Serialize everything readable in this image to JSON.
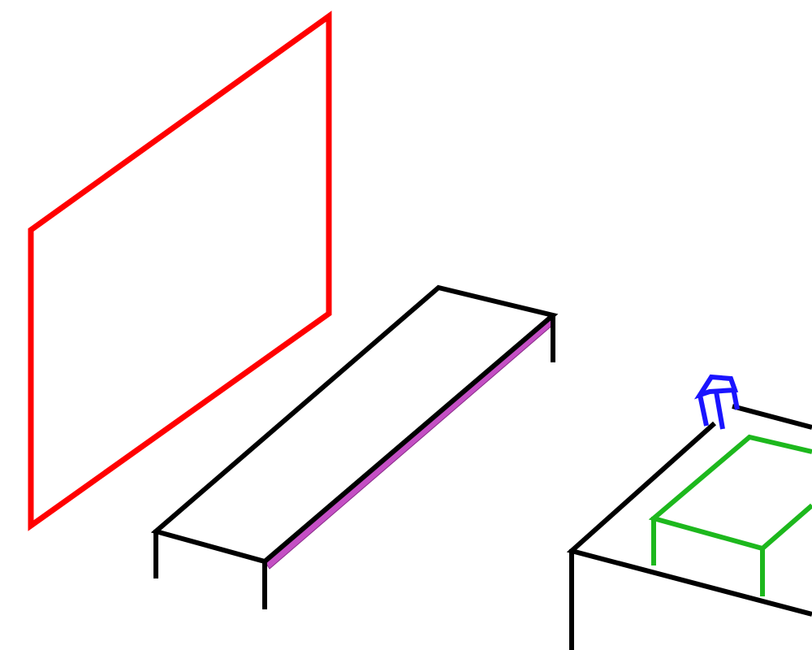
{
  "scene": {
    "background": "#ffffff",
    "objects": [
      {
        "name": "rug-outline",
        "color": "#ff0000"
      },
      {
        "name": "long-table",
        "color": "#000000",
        "edge_color": "#c44fc4"
      },
      {
        "name": "cabinet-block",
        "color": "#000000"
      },
      {
        "name": "green-box",
        "color": "#1db81d"
      },
      {
        "name": "chair-icon",
        "color": "#1a14ff"
      }
    ]
  }
}
